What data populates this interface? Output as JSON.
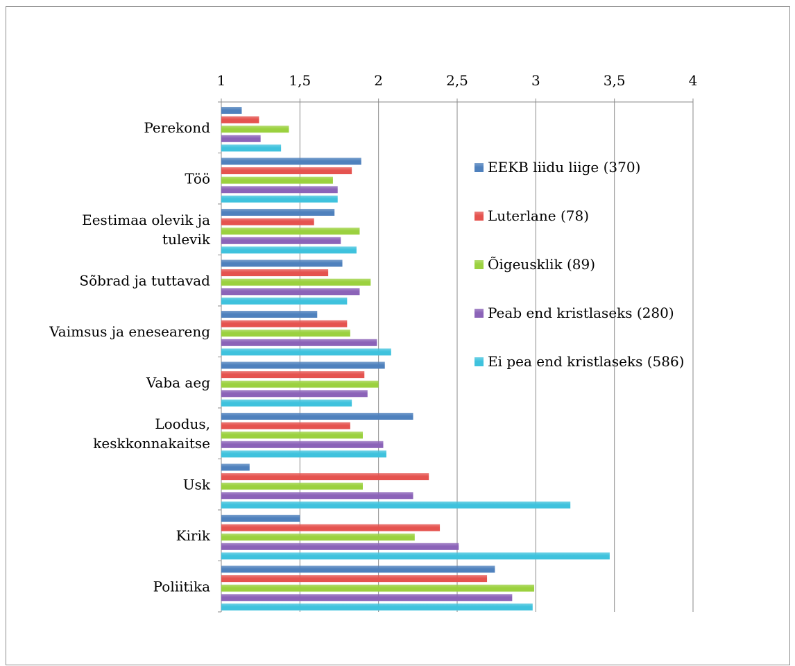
{
  "chart_data": {
    "type": "bar",
    "orientation": "horizontal",
    "title": "",
    "xlabel": "",
    "ylabel": "",
    "xlim": [
      1,
      4
    ],
    "x_ticks": [
      "1",
      "1,5",
      "2",
      "2,5",
      "3",
      "3,5",
      "4"
    ],
    "x_tick_values": [
      1,
      1.5,
      2,
      2.5,
      3,
      3.5,
      4
    ],
    "axis_position": "top",
    "grid": true,
    "legend_position": "right",
    "categories": [
      "Perekond",
      "Töö",
      "Eestimaa olevik ja tulevik",
      "Sõbrad ja tuttavad",
      "Vaimsus ja eneseareng",
      "Vaba aeg",
      "Loodus, keskkonnakaitse",
      "Usk",
      "Kirik",
      "Poliitika"
    ],
    "category_lines": [
      [
        "Perekond"
      ],
      [
        "Töö"
      ],
      [
        "Eestimaa olevik ja",
        "tulevik"
      ],
      [
        "Sõbrad ja tuttavad"
      ],
      [
        "Vaimsus ja eneseareng"
      ],
      [
        "Vaba aeg"
      ],
      [
        "Loodus,",
        "keskkonnakaitse"
      ],
      [
        "Usk"
      ],
      [
        "Kirik"
      ],
      [
        "Poliitika"
      ]
    ],
    "series": [
      {
        "name": "EEKB liidu liige (370)",
        "color": "#4f81bd",
        "values": [
          1.13,
          1.89,
          1.72,
          1.77,
          1.61,
          2.04,
          2.22,
          1.18,
          1.5,
          2.74
        ]
      },
      {
        "name": "Luterlane (78)",
        "color": "#e5534f",
        "values": [
          1.24,
          1.83,
          1.59,
          1.68,
          1.8,
          1.91,
          1.82,
          2.32,
          2.39,
          2.69
        ]
      },
      {
        "name": "Õigeusklik (89)",
        "color": "#9bd13f",
        "values": [
          1.43,
          1.71,
          1.88,
          1.95,
          1.82,
          2.0,
          1.9,
          1.9,
          2.23,
          2.99
        ]
      },
      {
        "name": "Peab end kristlaseks (280)",
        "color": "#8b63b8",
        "values": [
          1.25,
          1.74,
          1.76,
          1.88,
          1.99,
          1.93,
          2.03,
          2.22,
          2.51,
          2.85
        ]
      },
      {
        "name": "Ei pea end kristlaseks (586)",
        "color": "#3fc2dd",
        "values": [
          1.38,
          1.74,
          1.86,
          1.8,
          2.08,
          1.83,
          2.05,
          3.22,
          3.47,
          2.98
        ]
      }
    ]
  }
}
